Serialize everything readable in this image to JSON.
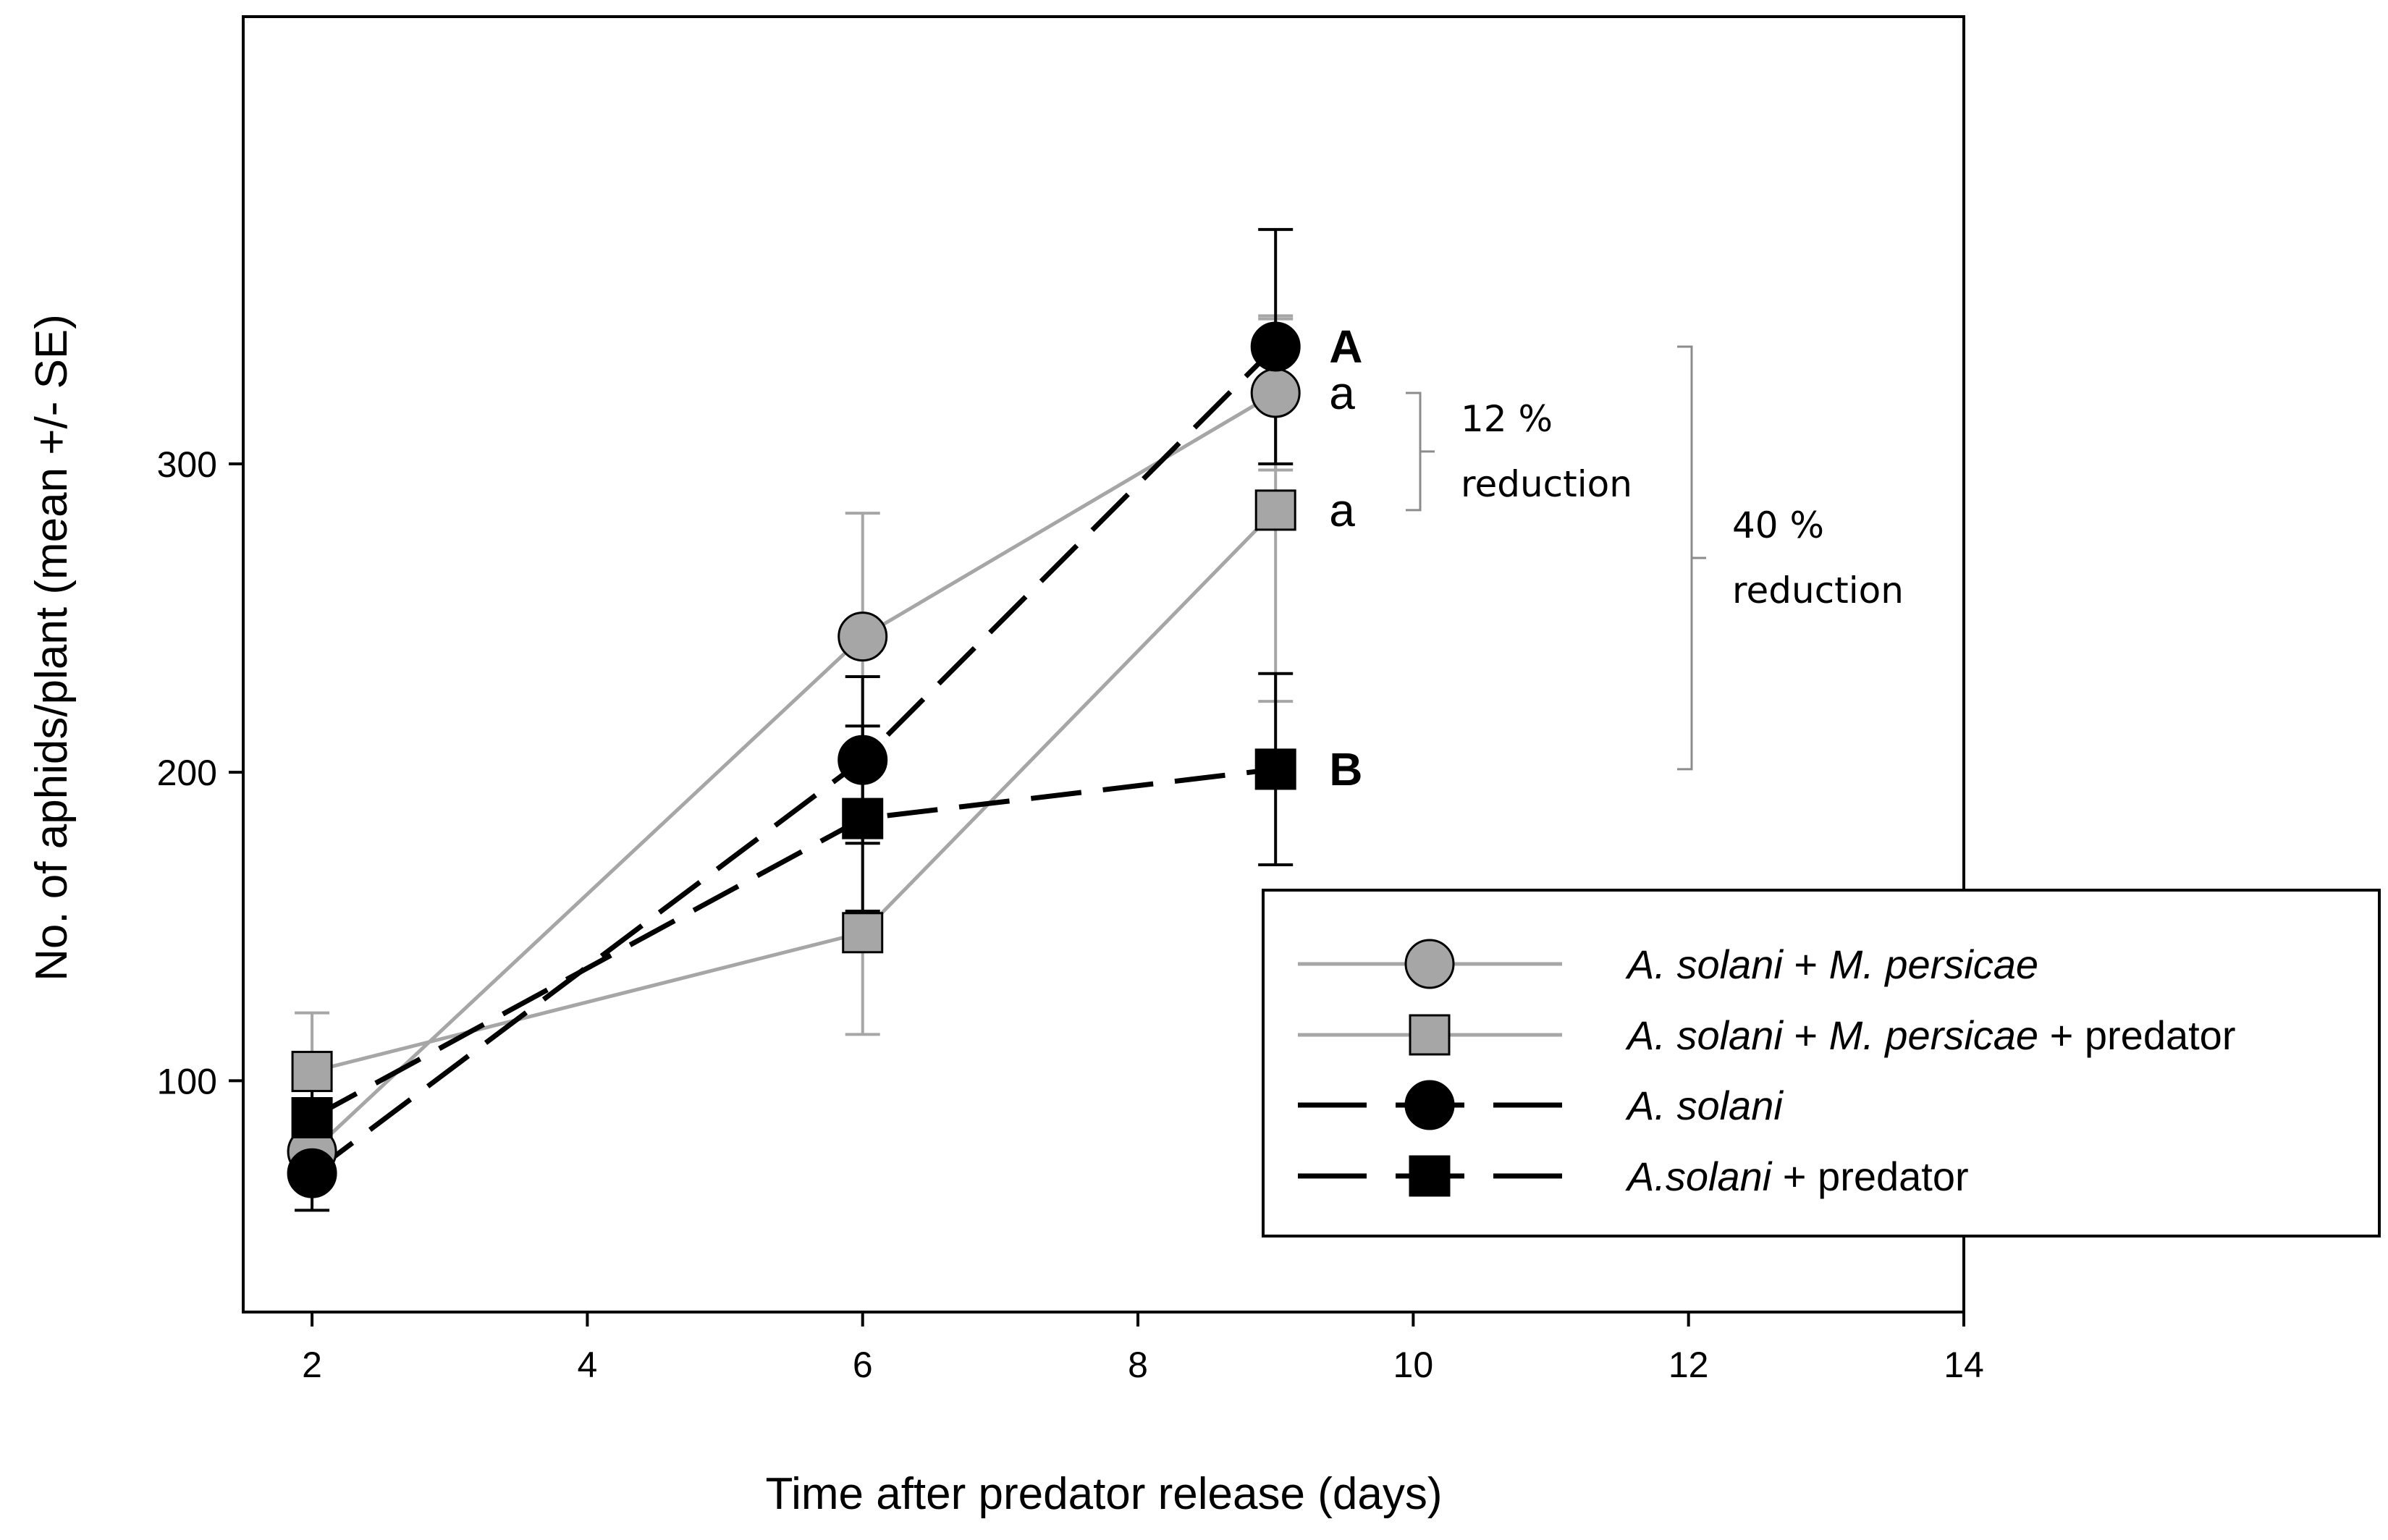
{
  "chart_data": {
    "type": "line",
    "xlabel": "Time after predator release (days)",
    "ylabel": "No. of aphids/plant (mean +/- SE)",
    "xlim": [
      1.5,
      14
    ],
    "ylim": [
      25,
      445
    ],
    "xticks": [
      2,
      4,
      6,
      8,
      10,
      12,
      14
    ],
    "yticks": [
      100,
      200,
      300
    ],
    "grid": false,
    "legend_position": "bottom-right",
    "series": [
      {
        "name": "A. solani + M. persicae",
        "legend_italic": "A. solani",
        "legend_mid": " + ",
        "legend_italic2": "M. persicae",
        "legend_tail": "",
        "color": "#a6a6a6",
        "fill": "#a6a6a6",
        "marker": "circle",
        "dash": "solid",
        "x": [
          2,
          6,
          9
        ],
        "y": [
          77,
          244,
          323
        ],
        "se": [
          10,
          40,
          25
        ]
      },
      {
        "name": "A. solani + M. persicae + predator",
        "legend_italic": "A. solani",
        "legend_mid": " + ",
        "legend_italic2": "M. persicae",
        "legend_tail": " + predator",
        "color": "#a6a6a6",
        "fill": "#a6a6a6",
        "marker": "square",
        "dash": "solid",
        "x": [
          2,
          6,
          9
        ],
        "y": [
          103,
          148,
          285
        ],
        "se": [
          19,
          33,
          62
        ]
      },
      {
        "name": "A. solani",
        "legend_italic": "A. solani",
        "legend_mid": "",
        "legend_italic2": "",
        "legend_tail": "",
        "color": "#000000",
        "fill": "#000000",
        "marker": "circle",
        "dash": "dashed",
        "x": [
          2,
          6,
          9
        ],
        "y": [
          70,
          204,
          338
        ],
        "se": [
          12,
          27,
          38
        ]
      },
      {
        "name": "A.solani + predator",
        "legend_italic": "A.solani",
        "legend_mid": "",
        "legend_italic2": "",
        "legend_tail": " + predator",
        "color": "#000000",
        "fill": "#000000",
        "marker": "square",
        "dash": "dashed",
        "x": [
          2,
          6,
          9
        ],
        "y": [
          88,
          185,
          201
        ],
        "se": [
          11,
          30,
          31
        ]
      }
    ],
    "significance_letters": [
      {
        "text": "A",
        "series": "A. solani",
        "bold": true
      },
      {
        "text": "a",
        "series": "A. solani + M. persicae",
        "bold": false
      },
      {
        "text": "a",
        "series": "A. solani + M. persicae + predator",
        "bold": false
      },
      {
        "text": "B",
        "series": "A.solani + predator",
        "bold": true
      }
    ],
    "annotations": [
      {
        "line1": "12 %",
        "line2": "reduction",
        "from_y": 323,
        "to_y": 285
      },
      {
        "line1": "40 %",
        "line2": "reduction",
        "from_y": 338,
        "to_y": 201
      }
    ]
  }
}
